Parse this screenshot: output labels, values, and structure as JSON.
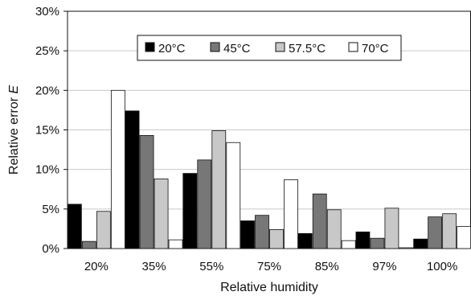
{
  "chart_data": {
    "type": "bar",
    "categories": [
      "20%",
      "35%",
      "55%",
      "75%",
      "85%",
      "97%",
      "100%"
    ],
    "series": [
      {
        "name": "20°C",
        "color": "#000000",
        "values": [
          5.6,
          17.4,
          9.5,
          3.5,
          1.9,
          2.1,
          1.2
        ]
      },
      {
        "name": "45°C",
        "color": "#777777",
        "values": [
          0.9,
          14.3,
          11.2,
          4.2,
          6.9,
          1.3,
          4.0
        ]
      },
      {
        "name": "57.5°C",
        "color": "#c8c8c8",
        "values": [
          4.7,
          8.8,
          14.9,
          2.4,
          4.9,
          5.1,
          4.4
        ]
      },
      {
        "name": "70°C",
        "color": "#ffffff",
        "values": [
          20.0,
          1.1,
          13.4,
          8.7,
          1.0,
          0.1,
          2.8
        ]
      }
    ],
    "xlabel": "Relative humidity",
    "ylabel_main": "Relative error ",
    "ylabel_var": "E",
    "ylim": [
      0,
      30
    ],
    "yticks": [
      "0%",
      "5%",
      "10%",
      "15%",
      "20%",
      "25%",
      "30%"
    ],
    "grid": true,
    "legend_position": "top-center"
  }
}
